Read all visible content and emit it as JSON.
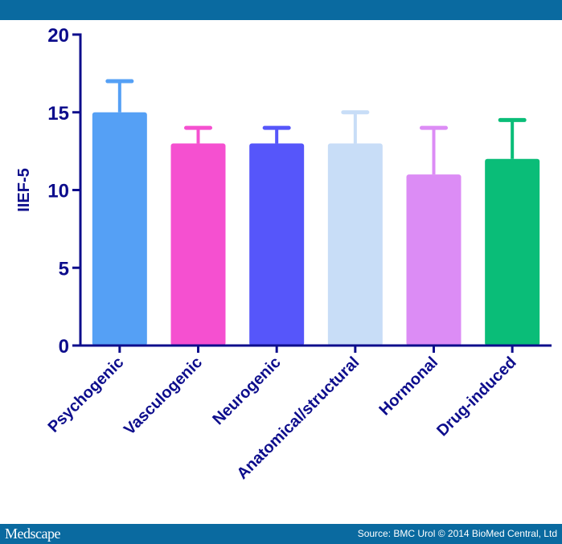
{
  "footer": {
    "brand": "Medscape",
    "source": "Source: BMC Urol © 2014 BioMed Central, Ltd"
  },
  "chart_data": {
    "type": "bar",
    "title": "",
    "xlabel": "",
    "ylabel": "IIEF-5",
    "ylim": [
      0,
      20
    ],
    "yticks": [
      0,
      5,
      10,
      15,
      20
    ],
    "categories": [
      "Psychogenic",
      "Vasculogenic",
      "Neurogenic",
      "Anatomical/structural",
      "Hormonal",
      "Drug-induced"
    ],
    "values": [
      15,
      13,
      13,
      13,
      11,
      12
    ],
    "error_upper": [
      17,
      14,
      14,
      15,
      14,
      14.5
    ],
    "colors": [
      "#55a0f5",
      "#f550d0",
      "#5656fa",
      "#c8ddf7",
      "#dc8cf5",
      "#0abd78"
    ],
    "axis_color": "#0d0d8c",
    "grid": false
  }
}
